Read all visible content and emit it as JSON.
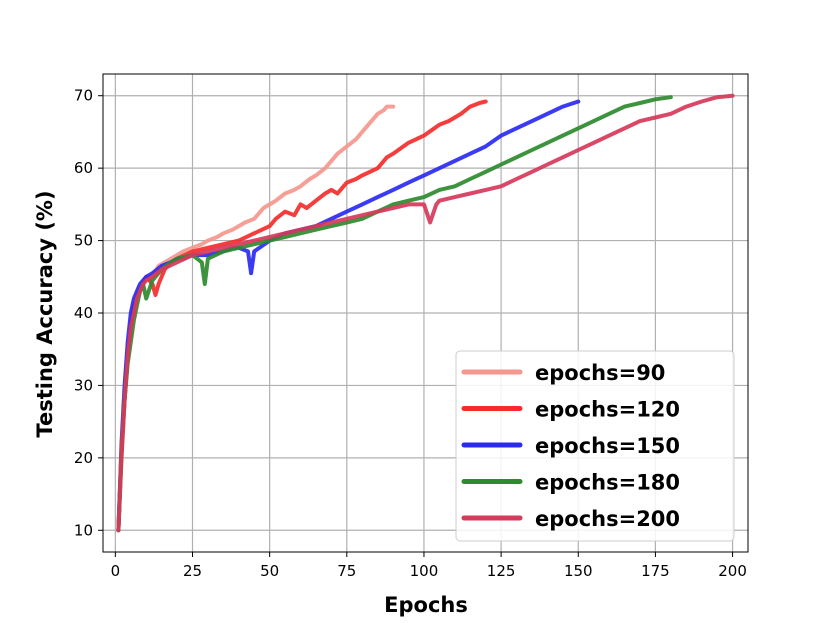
{
  "chart_data": {
    "type": "line",
    "title": "",
    "xlabel": "Epochs",
    "ylabel": "Testing Accuracy (%)",
    "xlim": [
      -4,
      205
    ],
    "ylim": [
      7,
      73
    ],
    "xticks": [
      0,
      25,
      50,
      75,
      100,
      125,
      150,
      175,
      200
    ],
    "yticks": [
      10,
      20,
      30,
      40,
      50,
      60,
      70
    ],
    "grid": true,
    "legend_position": "lower-right",
    "series": [
      {
        "name": "epochs=90",
        "color": "#f4978e",
        "x": [
          1,
          2,
          3,
          4,
          5,
          6,
          7,
          8,
          9,
          10,
          12,
          14,
          16,
          18,
          20,
          22,
          25,
          28,
          30,
          33,
          35,
          38,
          40,
          42,
          45,
          48,
          50,
          52,
          55,
          58,
          60,
          63,
          65,
          68,
          70,
          72,
          75,
          78,
          80,
          82,
          85,
          87,
          88,
          90
        ],
        "y": [
          10,
          20,
          28,
          34,
          38,
          41,
          42.5,
          43.5,
          44,
          45,
          45,
          46.5,
          47,
          47.5,
          48,
          48.5,
          49,
          49.5,
          50,
          50.5,
          51,
          51.5,
          52,
          52.5,
          53,
          54.5,
          55,
          55.5,
          56.5,
          57,
          57.5,
          58.5,
          59,
          60,
          61,
          62,
          63,
          64,
          65,
          66,
          67.5,
          68,
          68.5,
          68.5
        ]
      },
      {
        "name": "epochs=120",
        "color": "#f42c2c",
        "x": [
          1,
          2,
          3,
          4,
          5,
          6,
          7,
          8,
          9,
          10,
          12,
          13,
          14,
          16,
          18,
          20,
          25,
          30,
          35,
          40,
          45,
          50,
          52,
          55,
          58,
          60,
          62,
          65,
          68,
          70,
          72,
          75,
          78,
          80,
          85,
          88,
          90,
          95,
          100,
          105,
          108,
          110,
          112,
          115,
          118,
          120
        ],
        "y": [
          10,
          20,
          28,
          34,
          38,
          41,
          42,
          43,
          44,
          45,
          44,
          42.5,
          44,
          46,
          47,
          47.5,
          48.5,
          49,
          49.5,
          50,
          51,
          52,
          53,
          54,
          53.5,
          55,
          54.5,
          55.5,
          56.5,
          57,
          56.5,
          58,
          58.5,
          59,
          60,
          61.5,
          62,
          63.5,
          64.5,
          66,
          66.5,
          67,
          67.5,
          68.5,
          69,
          69.2
        ]
      },
      {
        "name": "epochs=150",
        "color": "#2a2af2",
        "x": [
          1,
          2,
          3,
          4,
          5,
          6,
          7,
          8,
          9,
          10,
          12,
          15,
          18,
          20,
          22,
          25,
          30,
          35,
          38,
          40,
          43,
          44,
          45,
          50,
          55,
          60,
          65,
          70,
          75,
          80,
          85,
          90,
          95,
          100,
          105,
          110,
          115,
          120,
          125,
          130,
          135,
          140,
          145,
          150
        ],
        "y": [
          10,
          22,
          30,
          36,
          40,
          42,
          43,
          44,
          44.5,
          45,
          45.5,
          46.5,
          47,
          47.5,
          47.5,
          48,
          48,
          48.5,
          49,
          49,
          48.5,
          45.5,
          48.5,
          50,
          51,
          51.5,
          52,
          53,
          54,
          55,
          56,
          57,
          58,
          59,
          60,
          61,
          62,
          63,
          64.5,
          65.5,
          66.5,
          67.5,
          68.5,
          69.2
        ]
      },
      {
        "name": "epochs=180",
        "color": "#2e8b2e",
        "x": [
          1,
          2,
          3,
          4,
          5,
          6,
          7,
          8,
          9,
          10,
          12,
          15,
          18,
          20,
          25,
          28,
          29,
          30,
          35,
          40,
          45,
          50,
          55,
          60,
          65,
          70,
          75,
          80,
          85,
          90,
          95,
          100,
          105,
          110,
          115,
          120,
          125,
          130,
          135,
          140,
          145,
          150,
          155,
          160,
          165,
          170,
          175,
          180
        ],
        "y": [
          10,
          21,
          28,
          33,
          36,
          39,
          41,
          43,
          44,
          42,
          44.5,
          46,
          47,
          47.5,
          48,
          47,
          44,
          47.5,
          48.5,
          49,
          49.5,
          50,
          50.5,
          51,
          51.5,
          52,
          52.5,
          53,
          54,
          55,
          55.5,
          56,
          57,
          57.5,
          58.5,
          59.5,
          60.5,
          61.5,
          62.5,
          63.5,
          64.5,
          65.5,
          66.5,
          67.5,
          68.5,
          69,
          69.5,
          69.8
        ]
      },
      {
        "name": "epochs=200",
        "color": "#d63a5a",
        "x": [
          1,
          2,
          3,
          4,
          5,
          6,
          7,
          8,
          9,
          10,
          12,
          15,
          20,
          25,
          30,
          35,
          40,
          45,
          50,
          55,
          60,
          65,
          70,
          75,
          80,
          85,
          90,
          95,
          100,
          102,
          104,
          105,
          110,
          115,
          120,
          125,
          130,
          135,
          140,
          145,
          150,
          155,
          160,
          165,
          170,
          175,
          180,
          185,
          190,
          195,
          200
        ],
        "y": [
          10,
          21,
          28,
          34,
          38,
          40,
          42,
          43,
          44,
          44.5,
          45,
          46,
          47,
          48,
          48.5,
          49,
          49.5,
          50,
          50.5,
          51,
          51.5,
          52,
          52.5,
          53,
          53.5,
          54,
          54.5,
          55,
          55,
          52.5,
          55,
          55.5,
          56,
          56.5,
          57,
          57.5,
          58.5,
          59.5,
          60.5,
          61.5,
          62.5,
          63.5,
          64.5,
          65.5,
          66.5,
          67,
          67.5,
          68.5,
          69.2,
          69.8,
          70
        ]
      }
    ]
  }
}
